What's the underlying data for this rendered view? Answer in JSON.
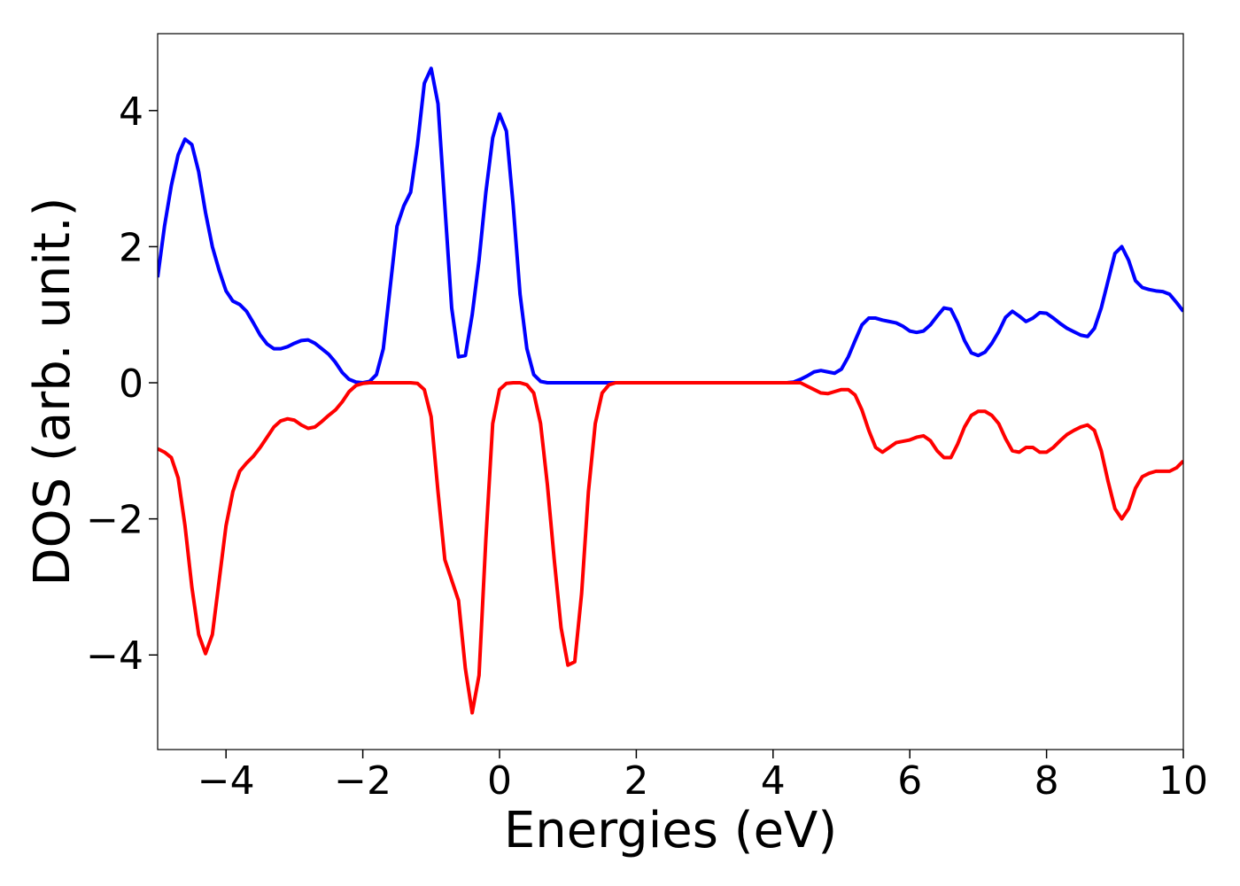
{
  "chart_data": {
    "type": "line",
    "xlabel": "Energies (eV)",
    "ylabel": "DOS (arb. unit.)",
    "xlim": [
      -5,
      10
    ],
    "ylim": [
      -5.39,
      5.13
    ],
    "xticks": [
      {
        "value": -4,
        "label": "−4"
      },
      {
        "value": -2,
        "label": "−2"
      },
      0,
      2,
      4,
      6,
      8,
      10
    ],
    "yticks": [
      {
        "value": -4,
        "label": "−4"
      },
      {
        "value": -2,
        "label": "−2"
      },
      0,
      2,
      4
    ],
    "grid": false,
    "x": [
      -5,
      -4.9,
      -4.8,
      -4.7,
      -4.6,
      -4.5,
      -4.4,
      -4.3,
      -4.2,
      -4.1,
      -4,
      -3.9,
      -3.8,
      -3.7,
      -3.6,
      -3.5,
      -3.4,
      -3.3,
      -3.2,
      -3.1,
      -3,
      -2.9,
      -2.8,
      -2.7,
      -2.6,
      -2.5,
      -2.4,
      -2.3,
      -2.2,
      -2.1,
      -2,
      -1.9,
      -1.8,
      -1.7,
      -1.6,
      -1.5,
      -1.4,
      -1.3,
      -1.2,
      -1.1,
      -1,
      -0.9,
      -0.8,
      -0.7,
      -0.6,
      -0.5,
      -0.4,
      -0.3,
      -0.2,
      -0.1,
      0,
      0.1,
      0.2,
      0.3,
      0.4,
      0.5,
      0.6,
      0.7,
      0.8,
      0.9,
      1,
      1.1,
      1.2,
      1.3,
      1.4,
      1.5,
      1.6,
      1.7,
      1.8,
      1.9,
      2,
      2.1,
      2.2,
      2.3,
      2.4,
      2.5,
      2.6,
      2.7,
      2.8,
      2.9,
      3,
      3.1,
      3.2,
      3.3,
      3.4,
      3.5,
      3.6,
      3.7,
      3.8,
      3.9,
      4,
      4.1,
      4.2,
      4.3,
      4.4,
      4.5,
      4.6,
      4.7,
      4.8,
      4.9,
      5,
      5.1,
      5.2,
      5.3,
      5.4,
      5.5,
      5.6,
      5.7,
      5.8,
      5.9,
      6,
      6.1,
      6.2,
      6.3,
      6.4,
      6.5,
      6.6,
      6.7,
      6.8,
      6.9,
      7,
      7.1,
      7.2,
      7.3,
      7.4,
      7.5,
      7.6,
      7.7,
      7.8,
      7.9,
      8,
      8.1,
      8.2,
      8.3,
      8.4,
      8.5,
      8.6,
      8.7,
      8.8,
      8.9,
      9,
      9.1,
      9.2,
      9.3,
      9.4,
      9.5,
      9.6,
      9.7,
      9.8,
      9.9,
      10
    ],
    "series": [
      {
        "color": "#0000ff",
        "values": [
          1.55,
          2.3,
          2.9,
          3.35,
          3.58,
          3.5,
          3.1,
          2.5,
          2.0,
          1.65,
          1.35,
          1.2,
          1.15,
          1.05,
          0.88,
          0.7,
          0.57,
          0.5,
          0.5,
          0.53,
          0.58,
          0.62,
          0.63,
          0.58,
          0.5,
          0.42,
          0.3,
          0.15,
          0.05,
          0.01,
          0,
          0.02,
          0.12,
          0.5,
          1.4,
          2.3,
          2.6,
          2.8,
          3.5,
          4.4,
          4.62,
          4.1,
          2.6,
          1.1,
          0.38,
          0.4,
          1.0,
          1.8,
          2.8,
          3.6,
          3.95,
          3.7,
          2.6,
          1.3,
          0.5,
          0.12,
          0.02,
          0,
          0,
          0,
          0,
          0,
          0,
          0,
          0,
          0,
          0,
          0,
          0,
          0,
          0,
          0,
          0,
          0,
          0,
          0,
          0,
          0,
          0,
          0,
          0,
          0,
          0,
          0,
          0,
          0,
          0,
          0,
          0,
          0,
          0,
          0,
          0,
          0.01,
          0.05,
          0.1,
          0.16,
          0.18,
          0.16,
          0.14,
          0.2,
          0.38,
          0.62,
          0.85,
          0.95,
          0.95,
          0.92,
          0.9,
          0.88,
          0.83,
          0.76,
          0.74,
          0.76,
          0.85,
          0.98,
          1.1,
          1.08,
          0.88,
          0.62,
          0.44,
          0.4,
          0.45,
          0.58,
          0.75,
          0.96,
          1.05,
          0.98,
          0.9,
          0.95,
          1.03,
          1.02,
          0.95,
          0.87,
          0.8,
          0.75,
          0.7,
          0.68,
          0.8,
          1.1,
          1.5,
          1.9,
          2.0,
          1.8,
          1.5,
          1.4,
          1.37,
          1.35,
          1.34,
          1.3,
          1.18,
          1.05
        ]
      },
      {
        "color": "#ff0000",
        "values": [
          -0.97,
          -1.02,
          -1.1,
          -1.4,
          -2.1,
          -3.0,
          -3.7,
          -3.98,
          -3.7,
          -2.9,
          -2.1,
          -1.6,
          -1.3,
          -1.18,
          -1.08,
          -0.95,
          -0.8,
          -0.65,
          -0.56,
          -0.53,
          -0.55,
          -0.62,
          -0.67,
          -0.65,
          -0.57,
          -0.48,
          -0.4,
          -0.28,
          -0.13,
          -0.04,
          -0.01,
          0,
          0,
          0,
          0,
          0,
          0,
          0,
          -0.01,
          -0.1,
          -0.5,
          -1.6,
          -2.6,
          -2.9,
          -3.2,
          -4.2,
          -4.85,
          -4.3,
          -2.3,
          -0.6,
          -0.1,
          -0.01,
          0,
          0,
          -0.03,
          -0.15,
          -0.6,
          -1.5,
          -2.6,
          -3.6,
          -4.15,
          -4.1,
          -3.1,
          -1.6,
          -0.6,
          -0.15,
          -0.03,
          0,
          0,
          0,
          0,
          0,
          0,
          0,
          0,
          0,
          0,
          0,
          0,
          0,
          0,
          0,
          0,
          0,
          0,
          0,
          0,
          0,
          0,
          0,
          0,
          0,
          0,
          0,
          0,
          -0.05,
          -0.1,
          -0.15,
          -0.16,
          -0.13,
          -0.1,
          -0.1,
          -0.18,
          -0.4,
          -0.7,
          -0.95,
          -1.02,
          -0.95,
          -0.88,
          -0.86,
          -0.84,
          -0.8,
          -0.78,
          -0.85,
          -1.0,
          -1.1,
          -1.1,
          -0.9,
          -0.65,
          -0.48,
          -0.42,
          -0.42,
          -0.48,
          -0.6,
          -0.82,
          -1.0,
          -1.02,
          -0.95,
          -0.95,
          -1.02,
          -1.02,
          -0.95,
          -0.85,
          -0.76,
          -0.7,
          -0.65,
          -0.62,
          -0.7,
          -1.0,
          -1.45,
          -1.85,
          -2.0,
          -1.85,
          -1.55,
          -1.38,
          -1.33,
          -1.3,
          -1.3,
          -1.3,
          -1.25,
          -1.15
        ]
      }
    ]
  }
}
